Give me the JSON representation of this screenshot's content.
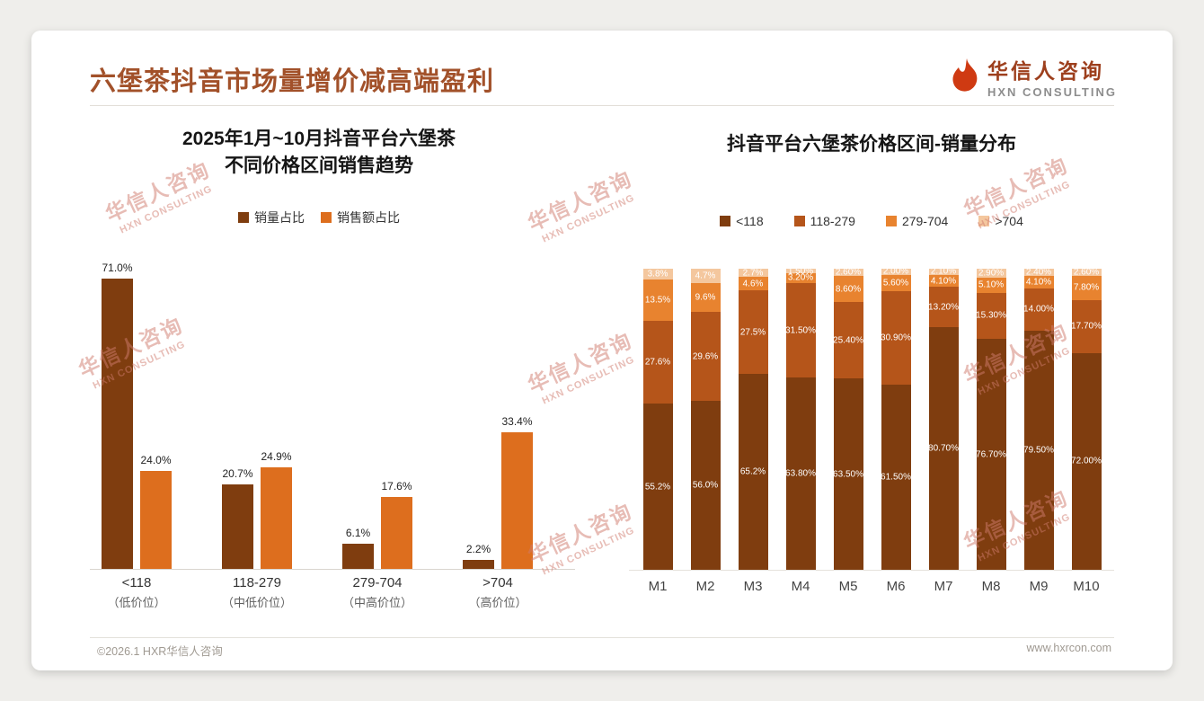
{
  "page": {
    "title": "六堡茶抖音市场量增价减高端盈利",
    "footer_left": "©2026.1 HXR华信人咨询",
    "footer_right": "www.hxrcon.com"
  },
  "logo": {
    "name_cn": "华信人咨询",
    "name_en": "HXN CONSULTING"
  },
  "watermark": {
    "line1": "华信人咨询",
    "line2": "HXN CONSULTING"
  },
  "colors": {
    "title": "#a2512a",
    "logo_icon": "#cf3a12",
    "logo_cn": "#9d3f1d",
    "watermark": "#d07b6e",
    "page_bg": "#efeeeb",
    "slide_bg": "#ffffff"
  },
  "chart_data": [
    {
      "type": "bar",
      "title": "2025年1月~10月抖音平台六堡茶\n不同价格区间销售趋势",
      "categories": [
        "<118",
        "118-279",
        "279-704",
        ">704"
      ],
      "category_subs": [
        "（低价位）",
        "（中低价位）",
        "（中高价位）",
        "（高价位）"
      ],
      "series": [
        {
          "name": "销量占比",
          "color": "#7f3d0f",
          "values": [
            71.0,
            20.7,
            6.1,
            2.2
          ],
          "labels": [
            "71.0%",
            "20.7%",
            "6.1%",
            "2.2%"
          ]
        },
        {
          "name": "销售额占比",
          "color": "#dd6e1e",
          "values": [
            24.0,
            24.9,
            17.6,
            33.4
          ],
          "labels": [
            "24.0%",
            "24.9%",
            "17.6%",
            "33.4%"
          ]
        }
      ],
      "ylim": [
        0,
        75
      ],
      "grid": false,
      "legend_position": "top"
    },
    {
      "type": "stacked-bar",
      "title": "抖音平台六堡茶价格区间-销量分布",
      "categories": [
        "M1",
        "M2",
        "M3",
        "M4",
        "M5",
        "M6",
        "M7",
        "M8",
        "M9",
        "M10"
      ],
      "series": [
        {
          "name": "<118",
          "color": "#7f3d0f",
          "values": [
            55.2,
            56.0,
            65.2,
            63.8,
            63.5,
            61.5,
            80.7,
            76.7,
            79.5,
            72.0
          ],
          "labels": [
            "55.2%",
            "56.0%",
            "65.2%",
            "63.80%",
            "63.50%",
            "61.50%",
            "80.70%",
            "76.70%",
            "79.50%",
            "72.00%"
          ]
        },
        {
          "name": "118-279",
          "color": "#b5551a",
          "values": [
            27.6,
            29.6,
            27.5,
            31.5,
            25.4,
            30.9,
            13.2,
            15.3,
            14.0,
            17.7
          ],
          "labels": [
            "27.6%",
            "29.6%",
            "27.5%",
            "31.50%",
            "25.40%",
            "30.90%",
            "13.20%",
            "15.30%",
            "14.00%",
            "17.70%"
          ]
        },
        {
          "name": "279-704",
          "color": "#e8832f",
          "values": [
            13.5,
            9.6,
            4.6,
            3.2,
            8.6,
            5.6,
            4.1,
            5.1,
            4.1,
            7.8
          ],
          "labels": [
            "13.5%",
            "9.6%",
            "4.6%",
            "3.20%",
            "8.60%",
            "5.60%",
            "4.10%",
            "5.10%",
            "4.10%",
            "7.80%"
          ]
        },
        {
          "name": ">704",
          "color": "#f4c79e",
          "values": [
            3.8,
            4.7,
            2.7,
            1.5,
            2.6,
            2.0,
            2.1,
            2.9,
            2.4,
            2.6
          ],
          "labels": [
            "3.8%",
            "4.7%",
            "2.7%",
            "1.50%",
            "2.60%",
            "2.00%",
            "2.10%",
            "2.90%",
            "2.40%",
            "2.60%"
          ]
        }
      ],
      "ylim": [
        0,
        100
      ],
      "unit": "percent",
      "grid": false,
      "legend_position": "top"
    }
  ]
}
